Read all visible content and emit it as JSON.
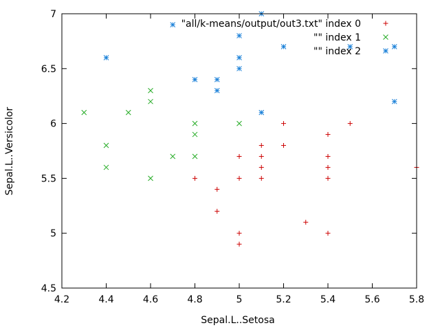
{
  "chart_data": {
    "type": "scatter",
    "title": "",
    "xlabel": "Sepal.L..Setosa",
    "ylabel": "Sepal.L..Versicolor",
    "xlim": [
      4.2,
      5.8
    ],
    "ylim": [
      4.5,
      7.0
    ],
    "x_ticks": [
      "4.2",
      "4.4",
      "4.6",
      "4.8",
      "5",
      "5.2",
      "5.4",
      "5.6",
      "5.8"
    ],
    "y_ticks": [
      "4.5",
      "5",
      "5.5",
      "6",
      "6.5",
      "7"
    ],
    "grid": false,
    "legend_position": "top-right",
    "series": [
      {
        "name": "\"all/k-means/output/out3.txt\" index 0",
        "marker": "plus",
        "color": "#cc0000",
        "points": [
          [
            4.8,
            5.5
          ],
          [
            4.9,
            5.4
          ],
          [
            4.9,
            5.2
          ],
          [
            5.0,
            5.7
          ],
          [
            5.0,
            5.5
          ],
          [
            5.0,
            5.0
          ],
          [
            5.0,
            4.9
          ],
          [
            5.1,
            5.8
          ],
          [
            5.1,
            5.7
          ],
          [
            5.1,
            5.6
          ],
          [
            5.1,
            5.5
          ],
          [
            5.2,
            6.0
          ],
          [
            5.2,
            5.8
          ],
          [
            5.3,
            5.1
          ],
          [
            5.4,
            5.9
          ],
          [
            5.4,
            5.7
          ],
          [
            5.4,
            5.6
          ],
          [
            5.4,
            5.5
          ],
          [
            5.4,
            5.0
          ],
          [
            5.5,
            6.0
          ],
          [
            5.8,
            5.6
          ]
        ]
      },
      {
        "name": "\"\" index 1",
        "marker": "cross",
        "color": "#22aa22",
        "points": [
          [
            4.3,
            6.1
          ],
          [
            4.4,
            5.8
          ],
          [
            4.4,
            5.6
          ],
          [
            4.5,
            6.1
          ],
          [
            4.6,
            6.3
          ],
          [
            4.6,
            6.2
          ],
          [
            4.6,
            5.5
          ],
          [
            4.7,
            5.7
          ],
          [
            4.8,
            6.0
          ],
          [
            4.8,
            5.9
          ],
          [
            4.8,
            5.7
          ],
          [
            5.0,
            6.0
          ]
        ]
      },
      {
        "name": "\"\" index 2",
        "marker": "star",
        "color": "#1a80d8",
        "points": [
          [
            4.4,
            6.6
          ],
          [
            4.7,
            6.9
          ],
          [
            4.8,
            6.4
          ],
          [
            4.9,
            6.4
          ],
          [
            4.9,
            6.3
          ],
          [
            5.0,
            6.8
          ],
          [
            5.0,
            6.6
          ],
          [
            5.0,
            6.5
          ],
          [
            5.1,
            7.0
          ],
          [
            5.1,
            6.1
          ],
          [
            5.2,
            6.7
          ],
          [
            5.5,
            6.7
          ],
          [
            5.7,
            6.7
          ],
          [
            5.7,
            6.2
          ]
        ]
      }
    ]
  }
}
